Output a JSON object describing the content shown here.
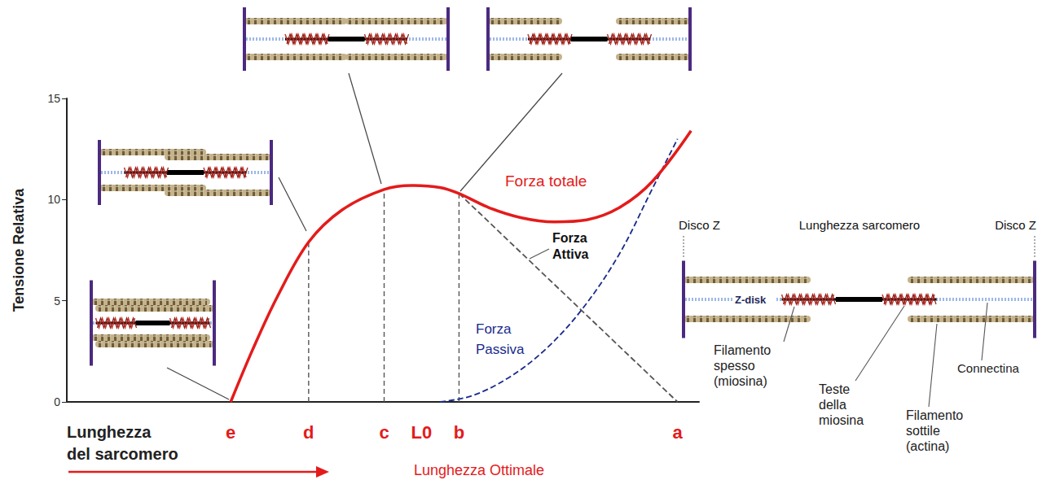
{
  "chart_data": {
    "type": "line",
    "x_label": "Lunghezza del sarcomero",
    "y_label": "Tensione Relativa",
    "xlim": [
      0,
      103
    ],
    "xticks": [
      {
        "value": 26.7,
        "label": "e"
      },
      {
        "value": 39.4,
        "label": "d"
      },
      {
        "value": 51.7,
        "label": "c"
      },
      {
        "value": 57.8,
        "label": "L0"
      },
      {
        "value": 63.9,
        "label": "b"
      },
      {
        "value": 99.5,
        "label": "a"
      }
    ],
    "ylim": [
      0,
      15
    ],
    "yticks": [
      0,
      5,
      10,
      15
    ],
    "grid": false,
    "series": [
      {
        "name": "Forza totale",
        "color": "#e41b1b",
        "line_style": "solid",
        "x": [
          26.7,
          30.3,
          34.3,
          39.4,
          44.9,
          51.7,
          56.2,
          60.8,
          63.9,
          68.8,
          74.1,
          79.4,
          84.7,
          90.0,
          95.4,
          101.7
        ],
        "values": [
          0,
          2.6,
          5.2,
          7.9,
          9.5,
          10.5,
          10.7,
          10.6,
          10.3,
          9.6,
          9.1,
          8.9,
          9.0,
          9.6,
          10.9,
          13.4
        ]
      },
      {
        "name": "Forza Attiva",
        "color": "#555555",
        "line_style": "dashed",
        "x": [
          63.9,
          99.5
        ],
        "values": [
          10.3,
          0
        ]
      },
      {
        "name": "Forza Passiva",
        "color": "#1a2a8c",
        "line_style": "dashed",
        "x": [
          60.8,
          66.0,
          72.0,
          78.0,
          84.0,
          90.0,
          95.5,
          99.5
        ],
        "values": [
          0,
          0.3,
          1.2,
          2.6,
          4.6,
          7.3,
          10.6,
          13.0
        ]
      }
    ],
    "guide_lines": [
      {
        "x": 39.4,
        "y": 7.9
      },
      {
        "x": 51.7,
        "y": 10.5
      },
      {
        "x": 63.9,
        "y": 10.3
      }
    ],
    "annotations": {
      "optimal_length": "Lunghezza Ottimale",
      "disk_label": "Disco Z",
      "sarcomere_length": "Lunghezza sarcomero",
      "z_disk": "Z-disk",
      "thick": "Filamento spesso (miosina)",
      "heads": "Teste della miosina",
      "thin": "Filamento sottile (actina)",
      "titin": "Connectina"
    }
  }
}
